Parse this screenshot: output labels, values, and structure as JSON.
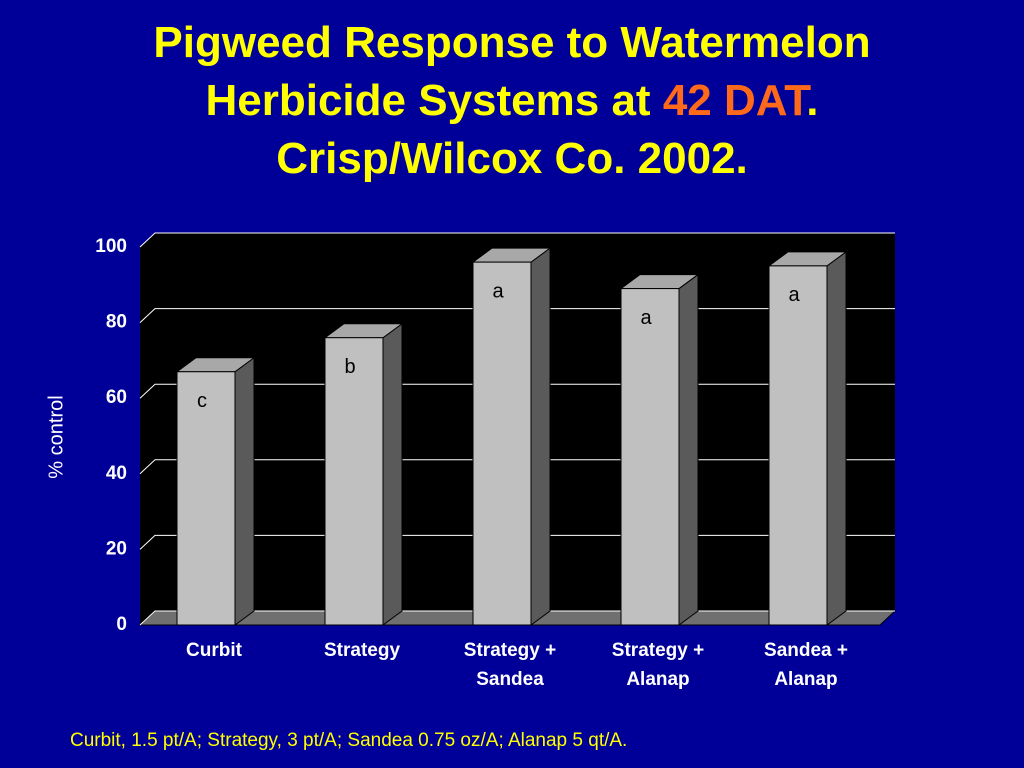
{
  "chart_data": {
    "type": "bar3d",
    "title_lines": [
      [
        {
          "text": "Pigweed Response to Watermelon",
          "color": "#ffff00"
        }
      ],
      [
        {
          "text": "Herbicide Systems at ",
          "color": "#ffff00"
        },
        {
          "text": "42 DAT",
          "color": "#ff6a1a"
        },
        {
          "text": ".",
          "color": "#ffff00"
        }
      ],
      [
        {
          "text": "Crisp/Wilcox Co. 2002.",
          "color": "#ffff00"
        }
      ]
    ],
    "ylabel": "% control",
    "categories": [
      [
        "Curbit"
      ],
      [
        "Strategy"
      ],
      [
        "Strategy +",
        "Sandea"
      ],
      [
        "Strategy +",
        "Alanap"
      ],
      [
        "Sandea +",
        "Alanap"
      ]
    ],
    "values": [
      67,
      76,
      96,
      89,
      95
    ],
    "significance": [
      "c",
      "b",
      "a",
      "a",
      "a"
    ],
    "color": "#c0c0c0",
    "ylim": [
      0,
      100
    ],
    "yticks": [
      0,
      20,
      40,
      60,
      80,
      100
    ],
    "grid": true,
    "footnote": "Curbit, 1.5 pt/A; Strategy, 3 pt/A; Sandea 0.75 oz/A; Alanap 5 qt/A."
  }
}
